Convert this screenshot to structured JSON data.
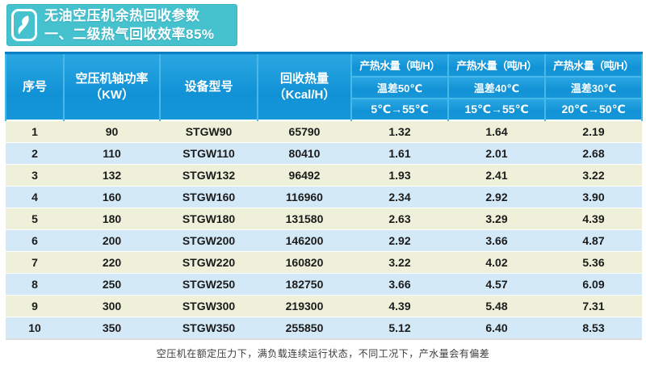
{
  "banner": {
    "logo": "s-swoosh-icon",
    "line1": "无油空压机余热回收参数",
    "line2": "一、二级热气回收效率85%"
  },
  "table": {
    "header": {
      "serial": "序号",
      "power_line1": "空压机轴功率",
      "power_line2": "（KW）",
      "model": "设备型号",
      "heat_line1": "回收热量",
      "heat_line2": "（Kcal/H）",
      "water_groups": [
        {
          "title": "产热水量（吨/H）",
          "diff": "温差50℃",
          "range": "5℃→55℃"
        },
        {
          "title": "产热水量（吨/H）",
          "diff": "温差40℃",
          "range": "15℃→55℃"
        },
        {
          "title": "产热水量（吨/H）",
          "diff": "温差30℃",
          "range": "20℃→50℃"
        }
      ]
    },
    "rows": [
      {
        "no": "1",
        "power": "90",
        "model": "STGW90",
        "heat": "65790",
        "w50": "1.32",
        "w40": "1.64",
        "w30": "2.19"
      },
      {
        "no": "2",
        "power": "110",
        "model": "STGW110",
        "heat": "80410",
        "w50": "1.61",
        "w40": "2.01",
        "w30": "2.68"
      },
      {
        "no": "3",
        "power": "132",
        "model": "STGW132",
        "heat": "96492",
        "w50": "1.93",
        "w40": "2.41",
        "w30": "3.22"
      },
      {
        "no": "4",
        "power": "160",
        "model": "STGW160",
        "heat": "116960",
        "w50": "2.34",
        "w40": "2.92",
        "w30": "3.90"
      },
      {
        "no": "5",
        "power": "180",
        "model": "STGW180",
        "heat": "131580",
        "w50": "2.63",
        "w40": "3.29",
        "w30": "4.39"
      },
      {
        "no": "6",
        "power": "200",
        "model": "STGW200",
        "heat": "146200",
        "w50": "2.92",
        "w40": "3.66",
        "w30": "4.87"
      },
      {
        "no": "7",
        "power": "220",
        "model": "STGW220",
        "heat": "160820",
        "w50": "3.22",
        "w40": "4.02",
        "w30": "5.36"
      },
      {
        "no": "8",
        "power": "250",
        "model": "STGW250",
        "heat": "182750",
        "w50": "3.66",
        "w40": "4.57",
        "w30": "6.09"
      },
      {
        "no": "9",
        "power": "300",
        "model": "STGW300",
        "heat": "219300",
        "w50": "4.39",
        "w40": "5.48",
        "w30": "7.31"
      },
      {
        "no": "10",
        "power": "350",
        "model": "STGW350",
        "heat": "255850",
        "w50": "5.12",
        "w40": "6.40",
        "w30": "8.53"
      }
    ]
  },
  "footer": {
    "note": "空压机在额定压力下，满负载连续运行状态，不同工况下，产水量会有偏差"
  },
  "colors": {
    "banner_bg": "#46c2ce",
    "header_bg": "#1697d8",
    "header_divider": "#46b9e9",
    "table_top_border": "#0c7ec4",
    "row_odd": "#eef0d9",
    "row_even": "#d4e9f8"
  }
}
